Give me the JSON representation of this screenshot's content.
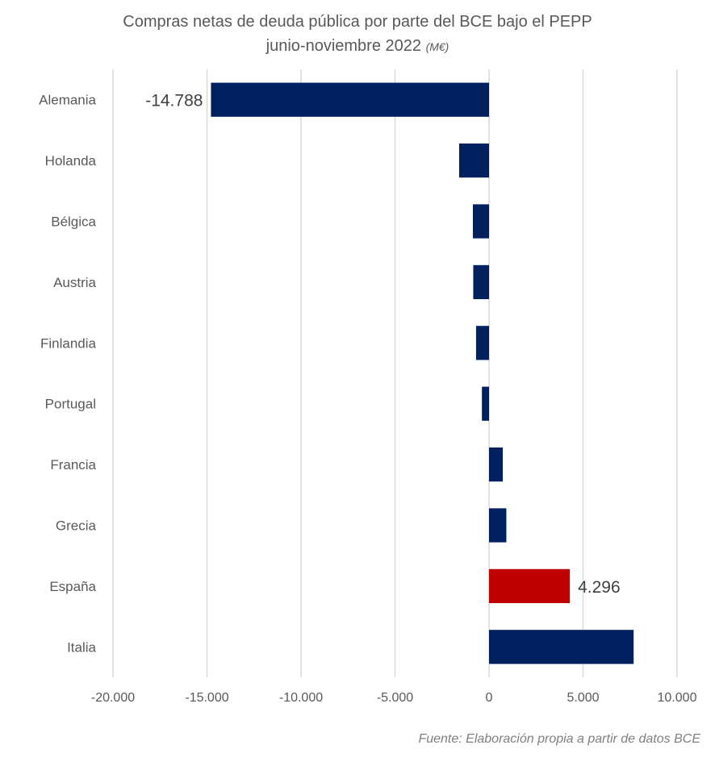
{
  "chart_data": {
    "type": "bar",
    "orientation": "horizontal",
    "title": "Compras netas de deuda pública por parte del BCE bajo el PEPP",
    "subtitle": "junio-noviembre 2022",
    "unit": "(M€)",
    "xlabel": "",
    "ylabel": "",
    "xlim": [
      -20000,
      10000
    ],
    "xticks": [
      -20000,
      -15000,
      -10000,
      -5000,
      0,
      5000,
      10000
    ],
    "xtick_labels": [
      "-20.000",
      "-15.000",
      "-10.000",
      "-5.000",
      "0",
      "5.000",
      "10.000"
    ],
    "grid": "vertical",
    "categories": [
      "Alemania",
      "Holanda",
      "Bélgica",
      "Austria",
      "Finlandia",
      "Portugal",
      "Francia",
      "Grecia",
      "España",
      "Italia"
    ],
    "values": [
      -14788,
      -1590,
      -860,
      -840,
      -690,
      -380,
      730,
      920,
      4296,
      7690
    ],
    "colors": [
      "#002060",
      "#002060",
      "#002060",
      "#002060",
      "#002060",
      "#002060",
      "#002060",
      "#002060",
      "#C00000",
      "#002060"
    ],
    "data_labels": [
      {
        "category": "Alemania",
        "text": "-14.788"
      },
      {
        "category": "España",
        "text": "4.296"
      }
    ],
    "source": "Fuente: Elaboración propia a partir de datos BCE"
  }
}
